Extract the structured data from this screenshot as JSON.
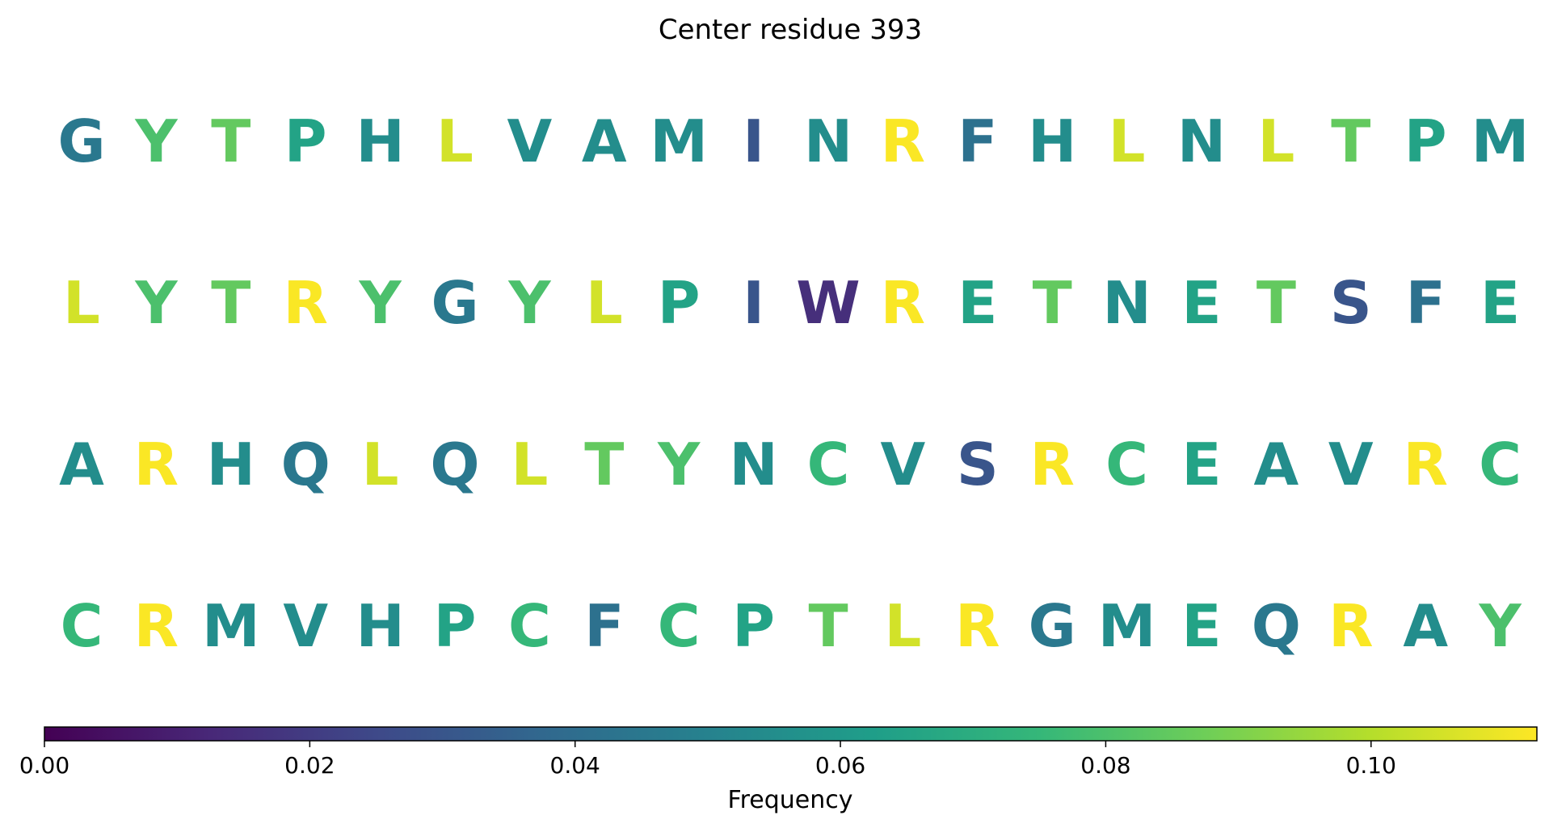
{
  "chart_data": {
    "type": "heatmap",
    "title": "Center residue 393",
    "colormap": "viridis",
    "rows": [
      {
        "letters": [
          "G",
          "Y",
          "T",
          "P",
          "H",
          "L",
          "V",
          "A",
          "M",
          "I",
          "N",
          "R",
          "F",
          "H",
          "L",
          "N",
          "L",
          "T",
          "P",
          "M"
        ],
        "values": [
          0.045,
          0.08,
          0.085,
          0.065,
          0.055,
          0.105,
          0.055,
          0.055,
          0.055,
          0.03,
          0.055,
          0.112,
          0.042,
          0.055,
          0.105,
          0.055,
          0.105,
          0.085,
          0.065,
          0.055
        ]
      },
      {
        "letters": [
          "L",
          "Y",
          "T",
          "R",
          "Y",
          "G",
          "Y",
          "L",
          "P",
          "I",
          "W",
          "R",
          "E",
          "T",
          "N",
          "E",
          "T",
          "S",
          "F",
          "E"
        ],
        "values": [
          0.105,
          0.08,
          0.085,
          0.112,
          0.08,
          0.045,
          0.08,
          0.105,
          0.065,
          0.03,
          0.015,
          0.112,
          0.065,
          0.085,
          0.055,
          0.065,
          0.085,
          0.03,
          0.042,
          0.065
        ]
      },
      {
        "letters": [
          "A",
          "R",
          "H",
          "Q",
          "L",
          "Q",
          "L",
          "T",
          "Y",
          "N",
          "C",
          "V",
          "S",
          "R",
          "C",
          "E",
          "A",
          "V",
          "R",
          "C"
        ],
        "values": [
          0.055,
          0.112,
          0.055,
          0.045,
          0.105,
          0.045,
          0.105,
          0.085,
          0.08,
          0.055,
          0.075,
          0.055,
          0.03,
          0.112,
          0.075,
          0.065,
          0.055,
          0.055,
          0.112,
          0.075
        ]
      },
      {
        "letters": [
          "C",
          "R",
          "M",
          "V",
          "H",
          "P",
          "C",
          "F",
          "C",
          "P",
          "T",
          "L",
          "R",
          "G",
          "M",
          "E",
          "Q",
          "R",
          "A",
          "Y"
        ],
        "values": [
          0.075,
          0.112,
          0.055,
          0.055,
          0.055,
          0.065,
          0.075,
          0.042,
          0.075,
          0.065,
          0.085,
          0.105,
          0.112,
          0.045,
          0.055,
          0.065,
          0.045,
          0.112,
          0.055,
          0.08
        ]
      }
    ],
    "colorbar": {
      "label": "Frequency",
      "range": [
        0.0,
        0.1125
      ],
      "ticks": [
        0.0,
        0.02,
        0.04,
        0.06,
        0.08,
        0.1
      ],
      "tick_labels": [
        "0.00",
        "0.02",
        "0.04",
        "0.06",
        "0.08",
        "0.10"
      ]
    }
  }
}
